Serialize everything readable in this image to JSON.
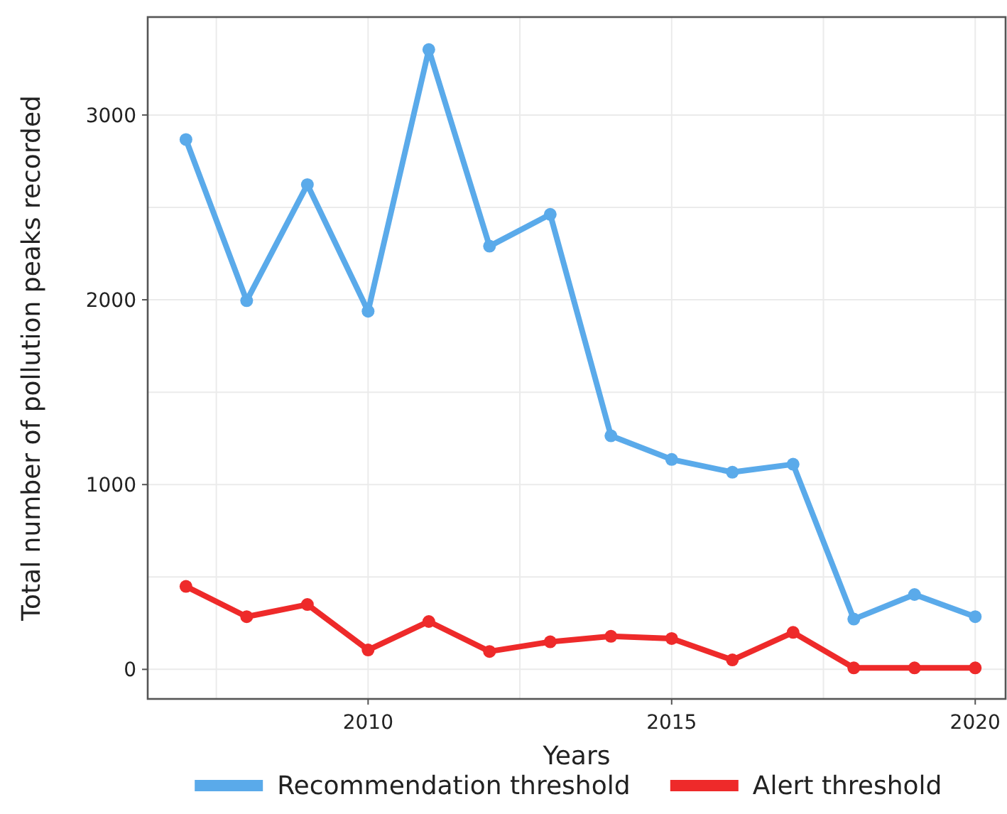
{
  "chart_data": {
    "type": "line",
    "xlabel": "Years",
    "ylabel": "Total number of pollution peaks recorded",
    "x": [
      2007,
      2008,
      2009,
      2010,
      2011,
      2012,
      2013,
      2014,
      2015,
      2016,
      2017,
      2018,
      2019,
      2020
    ],
    "series": [
      {
        "name": "Recommendation threshold",
        "color": "#5aaaea",
        "values": [
          2867,
          1995,
          2623,
          1938,
          3354,
          2290,
          2462,
          1264,
          1136,
          1067,
          1110,
          272,
          405,
          285
        ]
      },
      {
        "name": "Alert threshold",
        "color": "#ee2a2a",
        "values": [
          449,
          285,
          351,
          105,
          259,
          97,
          149,
          179,
          167,
          51,
          200,
          8,
          8,
          8
        ]
      }
    ],
    "xlim": [
      2006.37,
      2020.5
    ],
    "xticks": [
      {
        "value": 2007.5,
        "label": null
      },
      2010,
      {
        "value": 2012.5,
        "label": null
      },
      2015,
      {
        "value": 2017.5,
        "label": null
      },
      2020
    ],
    "ylim": [
      -160,
      3530
    ],
    "yticks": [
      0,
      {
        "value": 500,
        "label": null
      },
      1000,
      {
        "value": 1500,
        "label": null
      },
      2000,
      {
        "value": 2500,
        "label": null
      },
      3000
    ],
    "grid": true,
    "legend": "bottom",
    "marker": "circle",
    "line_style": "solid"
  }
}
